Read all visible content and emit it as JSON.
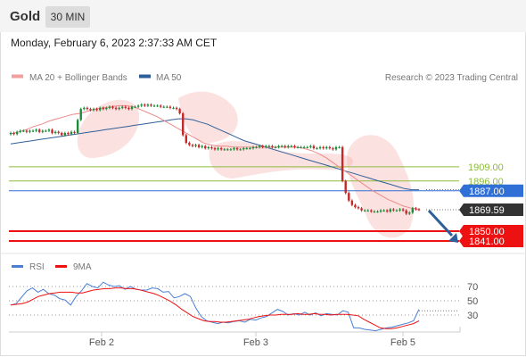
{
  "header": {
    "symbol": "Gold",
    "timeframe": "30 MIN"
  },
  "datetime": "Monday, February 6, 2023 2:37:33 AM CET",
  "legend": {
    "bands_label": "MA 20 + Bollinger Bands",
    "ma50_label": "MA 50",
    "credit": "Research © 2023 Trading Central"
  },
  "rsi_legend": {
    "rsi_label": "RSI",
    "ma_label": "9MA"
  },
  "colors": {
    "support": "#ee1111",
    "resistance": "#2f6fd6",
    "pivot": "#8dbb3c",
    "last_price": "#333333",
    "ma50": "#2f5f99",
    "bands": "#f7a8a8",
    "rsi": "#4a7fd4",
    "rsi_ma": "#ee1111",
    "arrow": "#2f5f99"
  },
  "chart_data": [
    {
      "type": "candlestick",
      "title": "Gold",
      "x_ticks": [
        "Feb 2",
        "Feb 3",
        "Feb 5"
      ],
      "ylim": [
        1825,
        1965
      ],
      "close": [
        1940,
        1939,
        1941,
        1942,
        1942,
        1941,
        1942,
        1942,
        1943,
        1941,
        1942,
        1942,
        1943,
        1940,
        1941,
        1940,
        1938,
        1940,
        1939,
        1941,
        1940,
        1952,
        1962,
        1963,
        1962,
        1961,
        1962,
        1961,
        1963,
        1962,
        1963,
        1964,
        1963,
        1962,
        1963,
        1964,
        1963,
        1962,
        1964,
        1964,
        1965,
        1966,
        1965,
        1966,
        1965,
        1965,
        1965,
        1964,
        1964,
        1964,
        1963,
        1963,
        1962,
        1958,
        1938,
        1931,
        1929,
        1928,
        1929,
        1927,
        1928,
        1926,
        1927,
        1926,
        1925,
        1926,
        1925,
        1925,
        1925,
        1925,
        1926,
        1925,
        1925,
        1926,
        1926,
        1926,
        1927,
        1927,
        1928,
        1927,
        1928,
        1928,
        1927,
        1927,
        1928,
        1928,
        1927,
        1928,
        1928,
        1927,
        1927,
        1927,
        1927,
        1927,
        1928,
        1926,
        1926,
        1927,
        1926,
        1927,
        1926,
        1925,
        1927,
        1927,
        1896,
        1885,
        1878,
        1874,
        1872,
        1871,
        1869,
        1869,
        1869,
        1868,
        1868,
        1868,
        1869,
        1869,
        1868,
        1870,
        1869,
        1869,
        1870,
        1869,
        1866,
        1867,
        1871,
        1870,
        1869.59
      ],
      "levels": [
        {
          "value": 1909.0,
          "label": "1909.00",
          "kind": "pivot"
        },
        {
          "value": 1896.0,
          "label": "1896.00",
          "kind": "pivot"
        },
        {
          "value": 1887.0,
          "label": "1887.00",
          "kind": "resistance"
        },
        {
          "value": 1869.59,
          "label": "1869.59",
          "kind": "last_price"
        },
        {
          "value": 1850.0,
          "label": "1850.00",
          "kind": "support"
        },
        {
          "value": 1841.0,
          "label": "1841.00",
          "kind": "support"
        }
      ],
      "ma50": [
        1930,
        1931,
        1932,
        1933,
        1934,
        1935,
        1936,
        1937,
        1938,
        1939,
        1940,
        1941,
        1942,
        1943,
        1944,
        1945,
        1946,
        1947,
        1948,
        1949,
        1950,
        1951,
        1952,
        1953,
        1953,
        1952,
        1950,
        1948,
        1945,
        1942,
        1939,
        1936,
        1933,
        1931,
        1929,
        1927,
        1925,
        1923,
        1921,
        1919,
        1917,
        1915,
        1913,
        1911,
        1909,
        1907,
        1905,
        1903,
        1901,
        1899,
        1897,
        1895,
        1893,
        1891,
        1889,
        1888,
        1888
      ],
      "ma20": [
        1939,
        1941,
        1943,
        1946,
        1948,
        1951,
        1953,
        1955,
        1957,
        1958,
        1960,
        1962,
        1963,
        1964,
        1965,
        1965,
        1964,
        1961,
        1958,
        1955,
        1951,
        1947,
        1943,
        1939,
        1935,
        1931,
        1929,
        1928,
        1928,
        1927,
        1927,
        1927,
        1927,
        1927,
        1927,
        1927,
        1927,
        1927,
        1926,
        1924,
        1921,
        1917,
        1912,
        1907,
        1902,
        1897,
        1892,
        1887,
        1883,
        1879,
        1876,
        1873,
        1871,
        1870
      ]
    },
    {
      "type": "line",
      "title": "RSI",
      "y_ticks": [
        30,
        50,
        70
      ],
      "ylim": [
        0,
        100
      ],
      "series": [
        {
          "name": "RSI",
          "values": [
            44,
            46,
            55,
            64,
            68,
            62,
            66,
            60,
            58,
            53,
            51,
            44,
            56,
            64,
            74,
            70,
            68,
            76,
            72,
            70,
            71,
            66,
            70,
            66,
            65,
            65,
            68,
            67,
            62,
            63,
            54,
            56,
            60,
            56,
            40,
            28,
            22,
            20,
            18,
            20,
            19,
            21,
            22,
            20,
            24,
            23,
            26,
            28,
            33,
            38,
            35,
            30,
            32,
            30,
            34,
            30,
            33,
            29,
            32,
            31,
            30,
            36,
            34,
            12,
            12,
            10,
            9,
            8,
            10,
            12,
            13,
            15,
            17,
            19,
            22,
            38
          ]
        },
        {
          "name": "9MA",
          "values": [
            44,
            45,
            46,
            48,
            52,
            56,
            58,
            60,
            61,
            62,
            62,
            62,
            61,
            61,
            63,
            65,
            66,
            67,
            67,
            68,
            68,
            67,
            67,
            66,
            64,
            62,
            60,
            57,
            53,
            49,
            44,
            38,
            33,
            28,
            25,
            22,
            21,
            21,
            20,
            20,
            21,
            22,
            23,
            24,
            26,
            28,
            29,
            30,
            30,
            31,
            31,
            31,
            32,
            31,
            31,
            32,
            31,
            31,
            30,
            31,
            31,
            31,
            30,
            29,
            24,
            20,
            16,
            12,
            11,
            11,
            12,
            14,
            16,
            18,
            22
          ]
        }
      ]
    }
  ]
}
